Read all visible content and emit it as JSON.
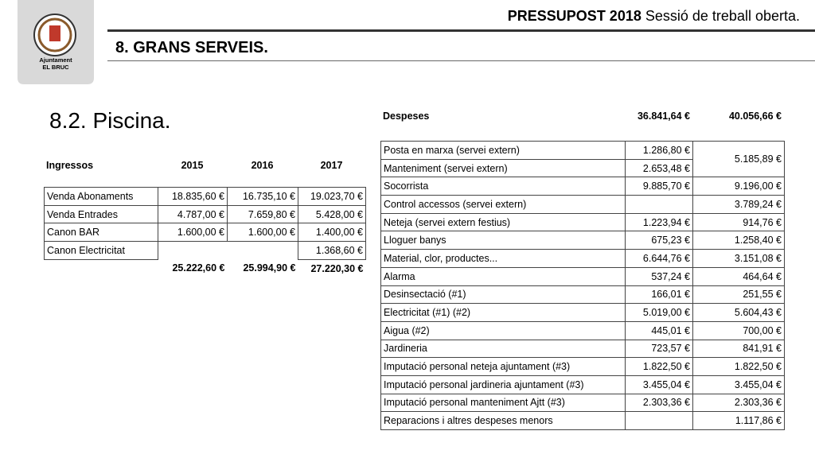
{
  "logo": {
    "line1": "Ajuntament",
    "line2": "EL BRUC"
  },
  "header": {
    "title_bold": "PRESSUPOST 2018",
    "title_rest": "Sessió de treball oberta.",
    "section": "8. GRANS SERVEIS."
  },
  "subsection": "8.2. Piscina.",
  "income_table": {
    "header": [
      "Ingressos",
      "2015",
      "2016",
      "2017"
    ],
    "rows": [
      [
        "Venda Abonaments",
        "18.835,60 €",
        "16.735,10 €",
        "19.023,70 €"
      ],
      [
        "Venda Entrades",
        "4.787,00 €",
        "7.659,80 €",
        "5.428,00 €"
      ],
      [
        "Canon BAR",
        "1.600,00 €",
        "1.600,00 €",
        "1.400,00 €"
      ],
      [
        "Canon Electricitat",
        null,
        null,
        "1.368,60 €"
      ]
    ],
    "totals": [
      "25.222,60 €",
      "25.994,90 €",
      "27.220,30 €"
    ]
  },
  "expense_table": {
    "header": [
      "Despeses",
      "36.841,64 €",
      "40.056,66 €"
    ],
    "rows": [
      [
        "Posta en marxa (servei extern)",
        "1.286,80 €",
        "5.185,89 €"
      ],
      [
        "Manteniment (servei extern)",
        "2.653,48 €",
        null
      ],
      [
        "Socorrista",
        "9.885,70 €",
        "9.196,00 €"
      ],
      [
        "Control accessos (servei extern)",
        null,
        "3.789,24 €"
      ],
      [
        "Neteja (servei extern festius)",
        "1.223,94 €",
        "914,76 €"
      ],
      [
        "Lloguer banys",
        "675,23 €",
        "1.258,40 €"
      ],
      [
        "Material, clor, productes...",
        "6.644,76 €",
        "3.151,08 €"
      ],
      [
        "Alarma",
        "537,24 €",
        "464,64 €"
      ],
      [
        "Desinsectació (#1)",
        "166,01 €",
        "251,55 €"
      ],
      [
        "Electricitat (#1) (#2)",
        "5.019,00 €",
        "5.604,43 €"
      ],
      [
        "Aigua (#2)",
        "445,01 €",
        "700,00 €"
      ],
      [
        "Jardineria",
        "723,57 €",
        "841,91 €"
      ],
      [
        "Imputació personal neteja ajuntament (#3)",
        "1.822,50 €",
        "1.822,50 €"
      ],
      [
        "Imputació personal jardineria ajuntament (#3)",
        "3.455,04 €",
        "3.455,04 €"
      ],
      [
        "Imputació personal manteniment Ajtt (#3)",
        "2.303,36 €",
        "2.303,36 €"
      ],
      [
        "Reparacions i altres despeses menors",
        null,
        "1.117,86 €"
      ]
    ]
  }
}
